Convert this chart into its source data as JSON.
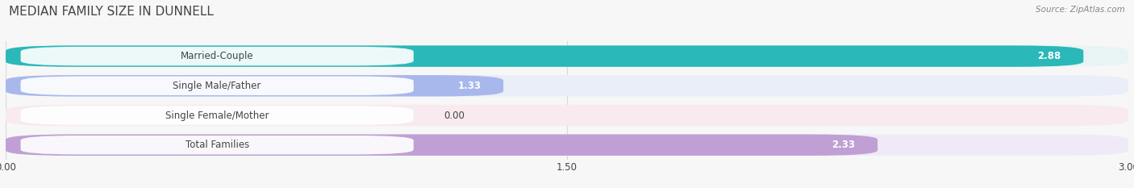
{
  "title": "MEDIAN FAMILY SIZE IN DUNNELL",
  "source": "Source: ZipAtlas.com",
  "categories": [
    "Married-Couple",
    "Single Male/Father",
    "Single Female/Mother",
    "Total Families"
  ],
  "values": [
    2.88,
    1.33,
    0.0,
    2.33
  ],
  "bar_colors": [
    "#2ab8b8",
    "#a8b8ec",
    "#f4a8bc",
    "#c0a0d4"
  ],
  "bar_bg_colors": [
    "#e8f4f4",
    "#eaeef8",
    "#f8eaee",
    "#f0eaf8"
  ],
  "xlim": [
    0,
    3.0
  ],
  "xticks": [
    0.0,
    1.5,
    3.0
  ],
  "xtick_labels": [
    "0.00",
    "1.50",
    "3.00"
  ],
  "bar_height": 0.72,
  "label_fontsize": 8.5,
  "value_fontsize": 8.5,
  "title_fontsize": 11,
  "source_fontsize": 7.5,
  "background_color": "#f7f7f7",
  "text_color": "#444444",
  "value_text_color_inside": "#ffffff",
  "grid_color": "#d8d8d8"
}
